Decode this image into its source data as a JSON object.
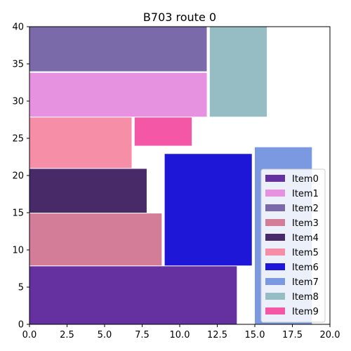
{
  "chart_data": {
    "type": "rectangle-packing",
    "title": "B703 route 0",
    "xlabel": "",
    "ylabel": "",
    "xlim": [
      0,
      20
    ],
    "ylim": [
      0,
      40
    ],
    "xticks": [
      "0.0",
      "2.5",
      "5.0",
      "7.5",
      "10.0",
      "12.5",
      "15.0",
      "17.5",
      "20.0"
    ],
    "yticks": [
      "0",
      "5",
      "10",
      "15",
      "20",
      "25",
      "30",
      "35",
      "40"
    ],
    "grid": false,
    "legend_position": "lower-right",
    "items": [
      {
        "name": "Item0",
        "color": "#6530a0",
        "x0": 0,
        "y0": 0,
        "x1": 13.8,
        "y1": 7.8
      },
      {
        "name": "Item1",
        "color": "#e692e0",
        "x0": 0,
        "y0": 27.9,
        "x1": 11.8,
        "y1": 33.8
      },
      {
        "name": "Item2",
        "color": "#7b6aaa",
        "x0": 0,
        "y0": 34.0,
        "x1": 11.8,
        "y1": 40.0
      },
      {
        "name": "Item3",
        "color": "#d37d98",
        "x0": 0,
        "y0": 7.9,
        "x1": 8.8,
        "y1": 14.9
      },
      {
        "name": "Item4",
        "color": "#472a67",
        "x0": 0,
        "y0": 15.0,
        "x1": 7.8,
        "y1": 20.9
      },
      {
        "name": "Item5",
        "color": "#f68ea8",
        "x0": 0,
        "y0": 21.0,
        "x1": 6.8,
        "y1": 27.8
      },
      {
        "name": "Item6",
        "color": "#1f17d8",
        "x0": 9.0,
        "y0": 7.9,
        "x1": 14.8,
        "y1": 22.9
      },
      {
        "name": "Item7",
        "color": "#7b99e0",
        "x0": 15.0,
        "y0": 0,
        "x1": 18.8,
        "y1": 23.8
      },
      {
        "name": "Item8",
        "color": "#96bdc4",
        "x0": 12.0,
        "y0": 27.9,
        "x1": 15.8,
        "y1": 40.0
      },
      {
        "name": "Item9",
        "color": "#f457a6",
        "x0": 7.0,
        "y0": 24.0,
        "x1": 10.8,
        "y1": 27.8
      }
    ]
  }
}
